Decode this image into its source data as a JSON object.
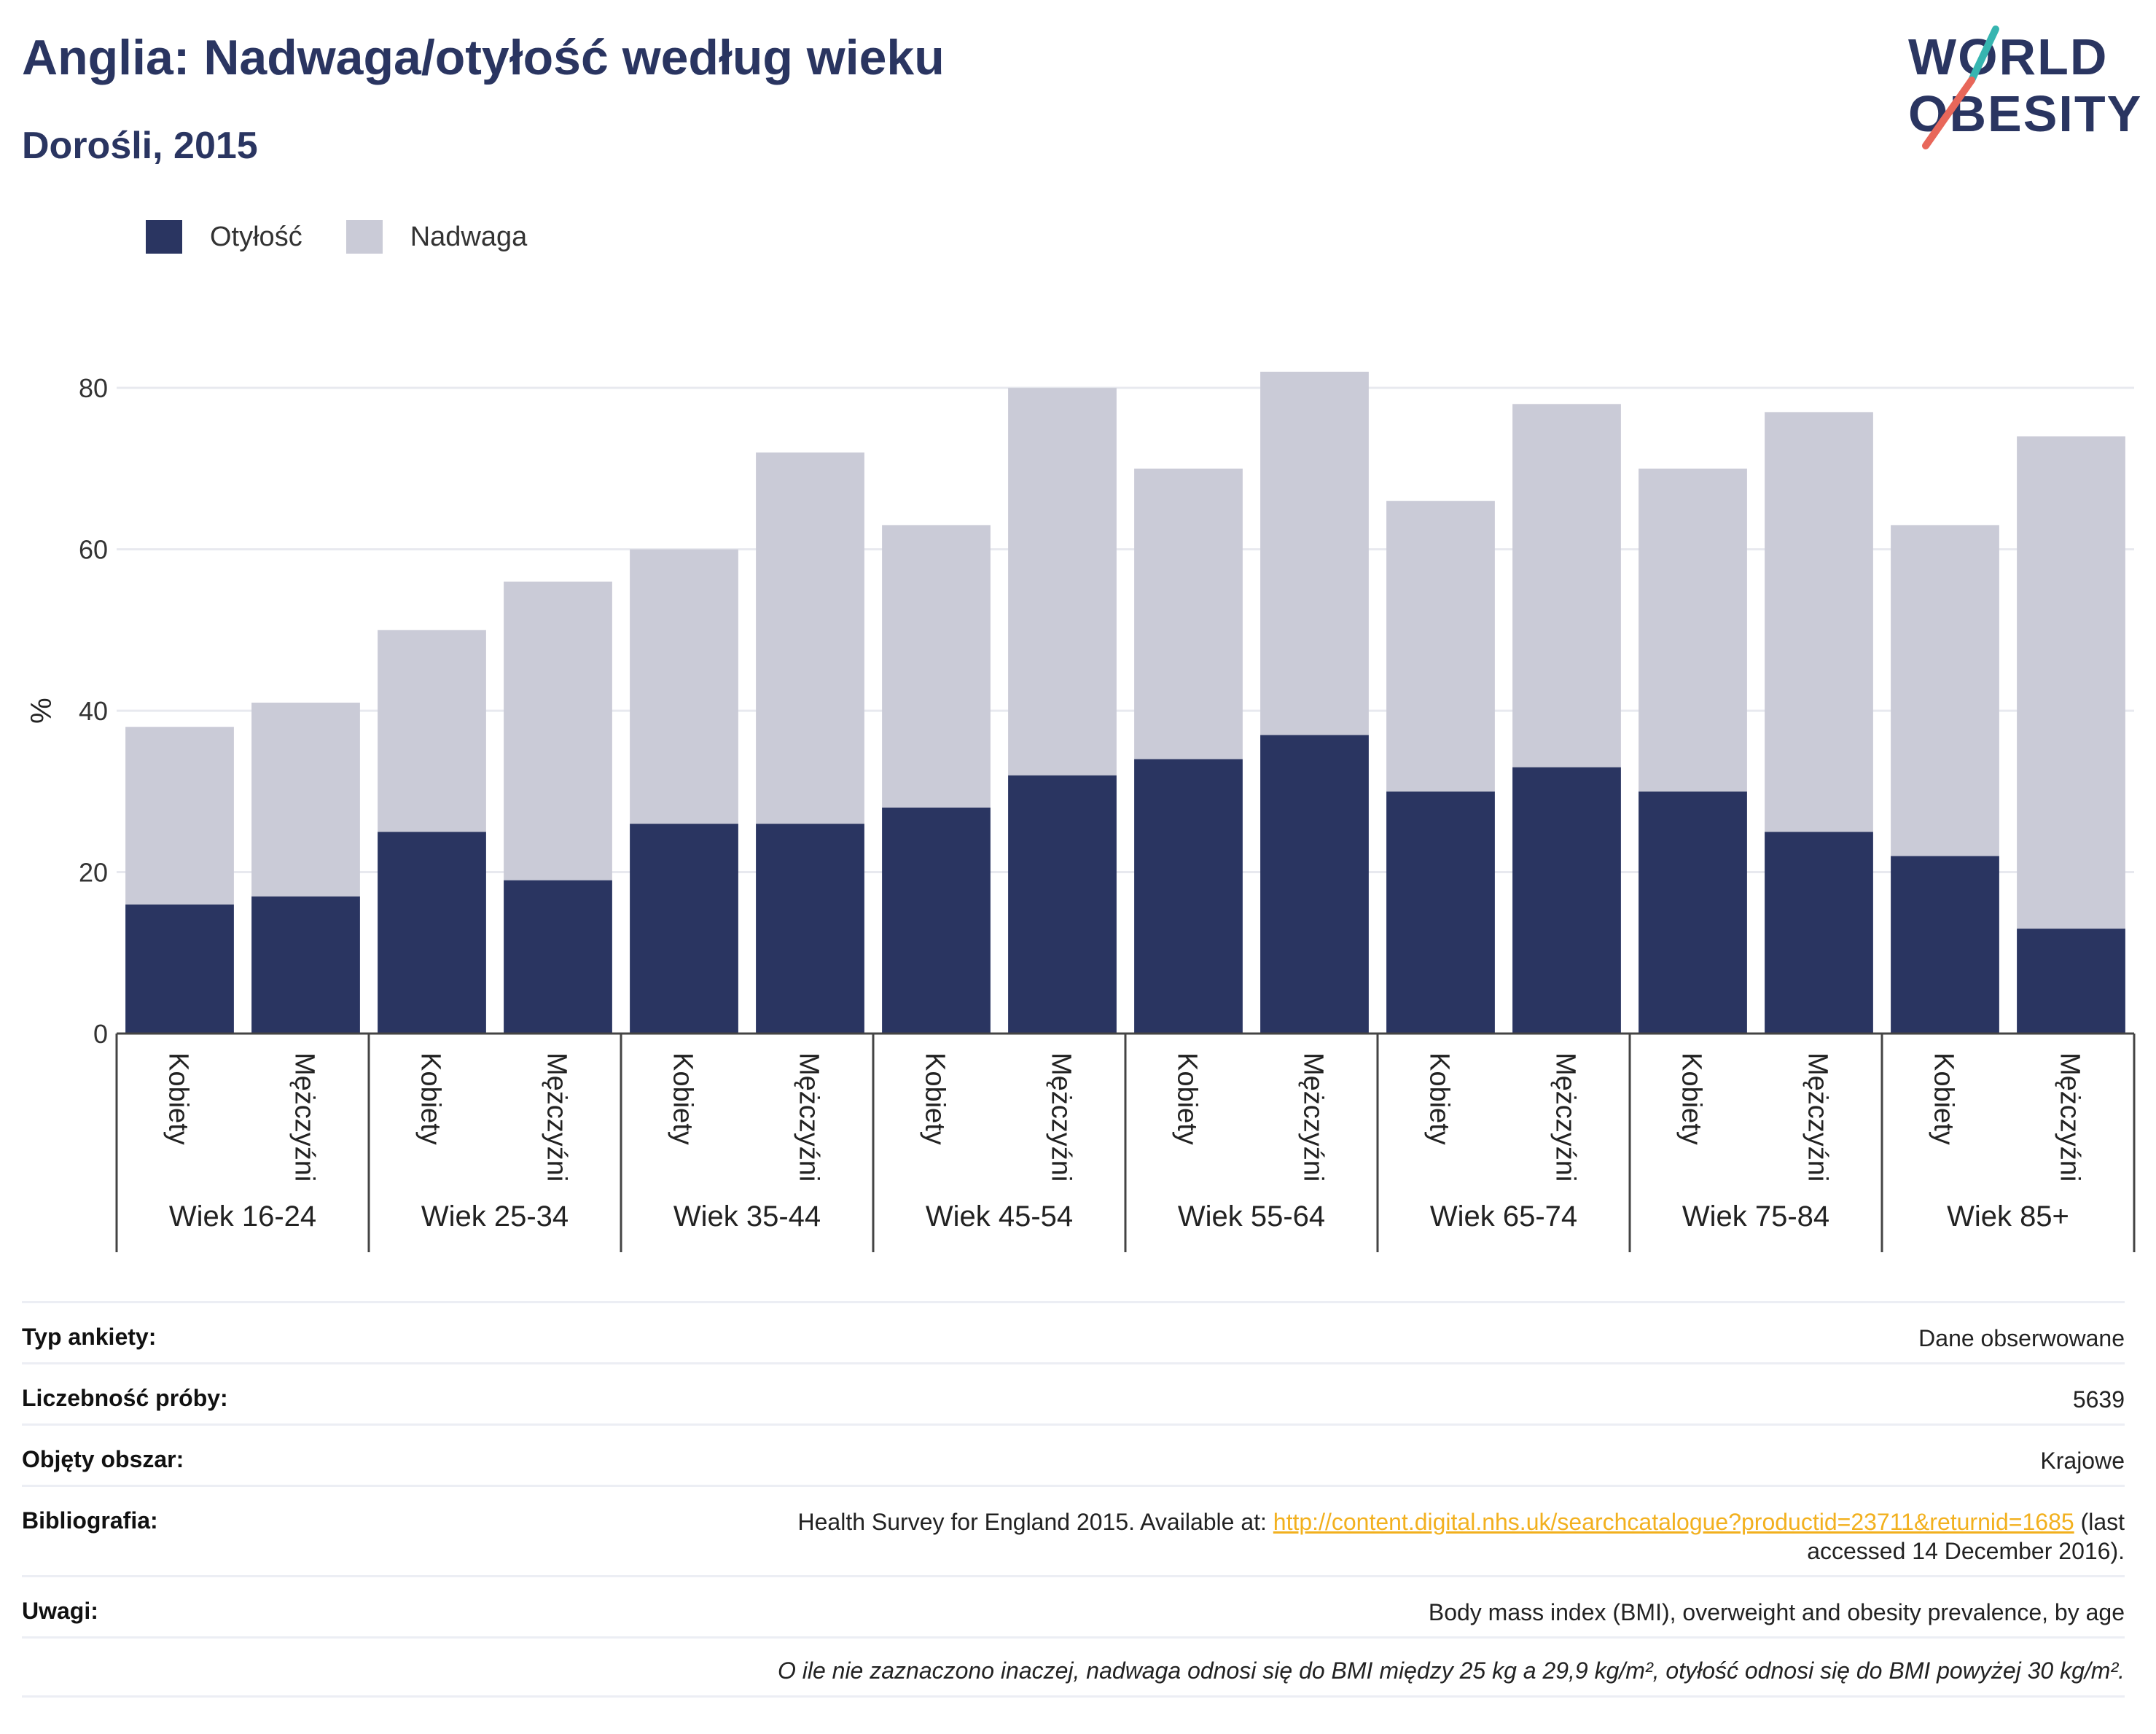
{
  "header": {
    "title": "Anglia: Nadwaga/otyłość według wieku",
    "subtitle": "Dorośli, 2015"
  },
  "logo": {
    "line1": "WORLD",
    "line2": "OBESITY"
  },
  "colors": {
    "obesity": "#2a3561",
    "overweight": "#cacbd7",
    "grid": "#e8e9ef",
    "axis": "#444444",
    "link": "#f2b01e"
  },
  "legend": [
    {
      "label": "Otyłość",
      "color": "#2a3561"
    },
    {
      "label": "Nadwaga",
      "color": "#cacbd7"
    }
  ],
  "chart_data": {
    "type": "bar",
    "stacked": true,
    "ylabel": "%",
    "ylim": [
      0,
      82
    ],
    "yticks": [
      0,
      20,
      40,
      60,
      80
    ],
    "groups": [
      "Wiek 16-24",
      "Wiek 25-34",
      "Wiek 35-44",
      "Wiek 45-54",
      "Wiek 55-64",
      "Wiek 65-74",
      "Wiek 75-84",
      "Wiek 85+"
    ],
    "subcategories": [
      "Kobiety",
      "Mężczyźni"
    ],
    "series": [
      {
        "name": "Otyłość",
        "values": [
          16,
          17,
          25,
          19,
          26,
          26,
          28,
          32,
          34,
          37,
          30,
          33,
          30,
          25,
          22,
          13
        ]
      },
      {
        "name": "Nadwaga",
        "values": [
          22,
          24,
          25,
          37,
          34,
          46,
          35,
          48,
          36,
          45,
          36,
          45,
          40,
          52,
          41,
          61
        ]
      }
    ]
  },
  "meta": [
    {
      "key": "Typ ankiety:",
      "value": "Dane obserwowane"
    },
    {
      "key": "Liczebność próby:",
      "value": "5639"
    },
    {
      "key": "Objęty obszar:",
      "value": "Krajowe"
    },
    {
      "key": "Bibliografia:",
      "value_pre": "Health Survey for England 2015. Available at: ",
      "link": "http://content.digital.nhs.uk/searchcatalogue?productid=23711&returnid=1685",
      "value_post_1": " (last",
      "value_post_2": "accessed 14 December 2016)."
    },
    {
      "key": "Uwagi:",
      "value": "Body mass index (BMI), overweight and obesity prevalence, by age"
    }
  ],
  "footnote": "O ile nie zaznaczono inaczej, nadwaga odnosi się do BMI między 25 kg a 29,9 kg/m², otyłość odnosi się do BMI powyżej 30 kg/m²."
}
